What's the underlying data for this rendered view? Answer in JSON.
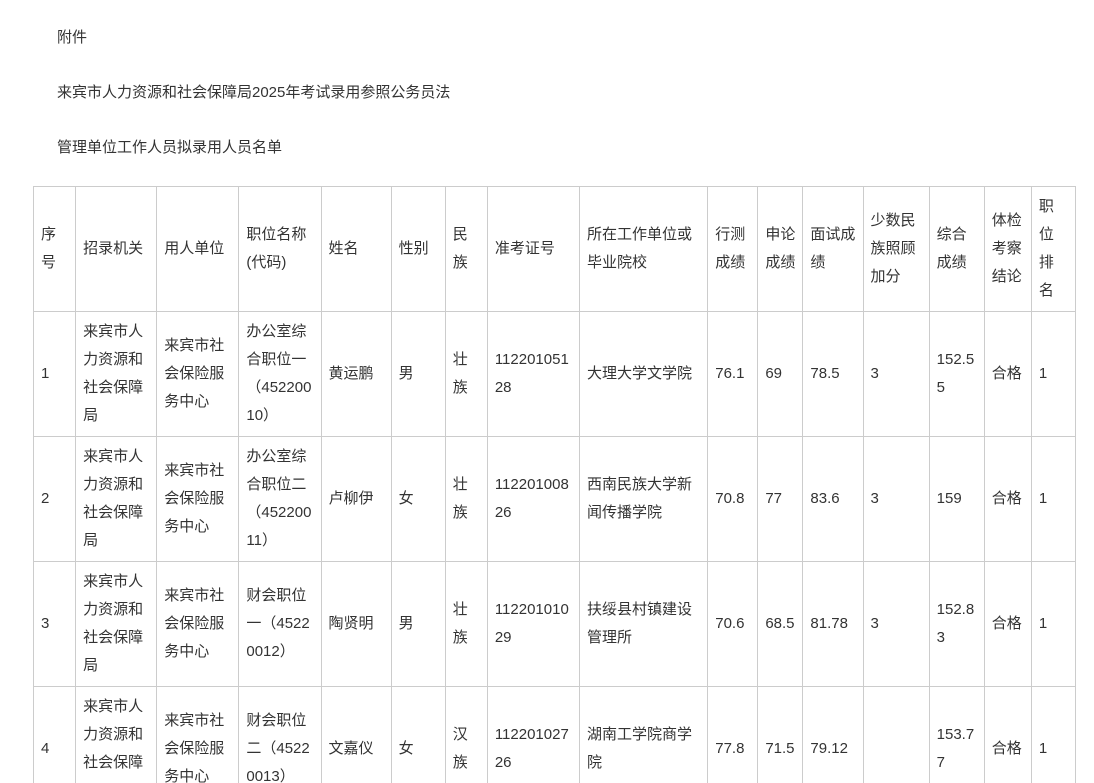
{
  "page": {
    "attachment_label": "附件",
    "title_line1": "来宾市人力资源和社会保障局2025年考试录用参照公务员法",
    "title_line2": "管理单位工作人员拟录用人员名单"
  },
  "table": {
    "columns": [
      "序号",
      "招录机关",
      "用人单位",
      "职位名称(代码)",
      "姓名",
      "性别",
      "民族",
      "准考证号",
      "所在工作单位或毕业院校",
      "行测成绩",
      "申论成绩",
      "面试成绩",
      "少数民族照顾加分",
      "综合成绩",
      "体检考察结论",
      "职位排名"
    ],
    "rows": [
      [
        "1",
        "来宾市人力资源和社会保障局",
        "来宾市社会保险服务中心",
        "办公室综合职位一（45220010）",
        "黄运鹏",
        "男",
        "壮族",
        "11220105128",
        "大理大学文学院",
        "76.1",
        "69",
        "78.5",
        "3",
        "152.55",
        "合格",
        "1"
      ],
      [
        "2",
        "来宾市人力资源和社会保障局",
        "来宾市社会保险服务中心",
        "办公室综合职位二（45220011）",
        "卢柳伊",
        "女",
        "壮族",
        "11220100826",
        "西南民族大学新闻传播学院",
        "70.8",
        "77",
        "83.6",
        "3",
        "159",
        "合格",
        "1"
      ],
      [
        "3",
        "来宾市人力资源和社会保障局",
        "来宾市社会保险服务中心",
        "财会职位一（45220012）",
        "陶贤明",
        "男",
        "壮族",
        "11220101029",
        "扶绥县村镇建设管理所",
        "70.6",
        "68.5",
        "81.78",
        "3",
        "152.83",
        "合格",
        "1"
      ],
      [
        "4",
        "来宾市人力资源和社会保障局",
        "来宾市社会保险服务中心",
        "财会职位二（45220013）",
        "文嘉仪",
        "女",
        "汉族",
        "11220102726",
        "湖南工学院商学院",
        "77.8",
        "71.5",
        "79.12",
        "",
        "153.77",
        "合格",
        "1"
      ]
    ]
  },
  "colors": {
    "text": "#333333",
    "border": "#cccccc",
    "background": "#ffffff"
  }
}
